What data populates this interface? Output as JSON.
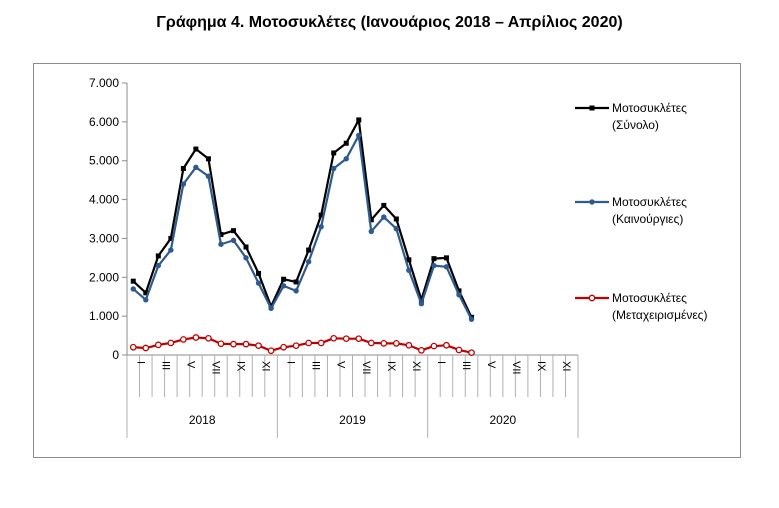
{
  "chart_data": {
    "type": "line",
    "title": "Γράφημα 4. Μοτοσυκλέτες (Ιανουάριος 2018 – Απρίλιος 2020)",
    "xlabel": "",
    "ylabel": "",
    "ylim": [
      0,
      7000
    ],
    "yticks": [
      "0",
      "1.000",
      "2.000",
      "3.000",
      "4.000",
      "5.000",
      "6.000",
      "7.000"
    ],
    "ytick_values": [
      0,
      1000,
      2000,
      3000,
      4000,
      5000,
      6000,
      7000
    ],
    "month_tick_labels": [
      "I",
      "III",
      "V",
      "VII",
      "IX",
      "XI"
    ],
    "month_tick_positions": [
      1,
      3,
      5,
      7,
      9,
      11
    ],
    "years": [
      "2018",
      "2019",
      "2020"
    ],
    "x": [
      "2018-01",
      "2018-02",
      "2018-03",
      "2018-04",
      "2018-05",
      "2018-06",
      "2018-07",
      "2018-08",
      "2018-09",
      "2018-10",
      "2018-11",
      "2018-12",
      "2019-01",
      "2019-02",
      "2019-03",
      "2019-04",
      "2019-05",
      "2019-06",
      "2019-07",
      "2019-08",
      "2019-09",
      "2019-10",
      "2019-11",
      "2019-12",
      "2020-01",
      "2020-02",
      "2020-03",
      "2020-04"
    ],
    "grid": false,
    "legend_position": "right",
    "series": [
      {
        "name": "Μοτοσυκλέτες (Σύνολο)",
        "color": "#000000",
        "marker": "square",
        "values": [
          1900,
          1600,
          2550,
          3000,
          4800,
          5300,
          5050,
          3100,
          3200,
          2780,
          2100,
          1250,
          1950,
          1880,
          2700,
          3600,
          5200,
          5450,
          6050,
          3480,
          3850,
          3500,
          2450,
          1420,
          2480,
          2500,
          1650,
          970
        ]
      },
      {
        "name": "Μοτοσυκλέτες (Καινούργιες)",
        "color": "#2e5a8e",
        "marker": "circle",
        "values": [
          1700,
          1420,
          2300,
          2700,
          4400,
          4830,
          4600,
          2850,
          2950,
          2500,
          1850,
          1200,
          1780,
          1650,
          2400,
          3300,
          4800,
          5050,
          5650,
          3180,
          3550,
          3250,
          2180,
          1320,
          2300,
          2270,
          1550,
          920
        ]
      },
      {
        "name": "Μοτοσυκλέτες (Μεταχειρισμένες)",
        "color": "#c00000",
        "marker": "circle-open",
        "values": [
          200,
          180,
          260,
          310,
          400,
          450,
          430,
          290,
          280,
          280,
          240,
          110,
          200,
          240,
          310,
          310,
          430,
          420,
          420,
          310,
          300,
          300,
          250,
          120,
          230,
          250,
          130,
          60
        ]
      }
    ]
  }
}
